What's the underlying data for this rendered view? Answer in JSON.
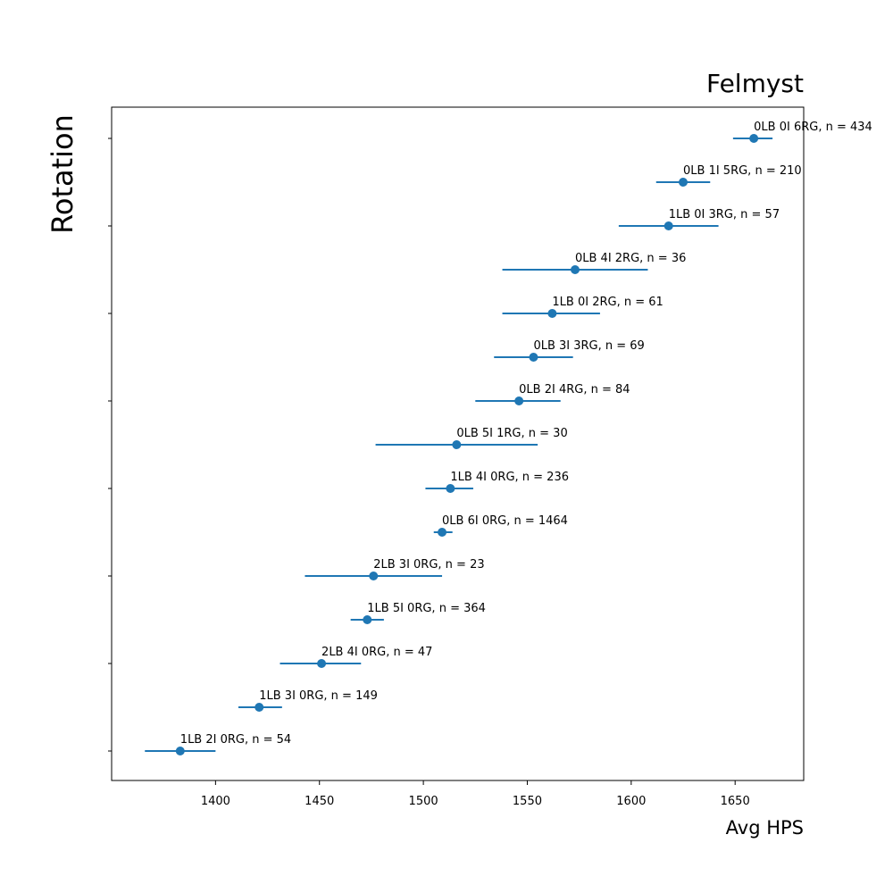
{
  "chart_data": {
    "type": "scatter",
    "title": "Felmyst",
    "xlabel": "Avg HPS",
    "ylabel": "Rotation",
    "xlim": [
      1350,
      1683
    ],
    "x_ticks": [
      1400,
      1450,
      1500,
      1550,
      1600,
      1650
    ],
    "x_tick_labels": [
      "1400",
      "1450",
      "1500",
      "1550",
      "1600",
      "1650"
    ],
    "y_tick_labels_shown": false,
    "grid": false,
    "legend": "none",
    "color": "#1f77b4",
    "series": [
      {
        "points": [
          {
            "label": "1LB 2I 0RG, n = 54",
            "x": 1383,
            "xerr_low": 1366,
            "xerr_high": 1400
          },
          {
            "label": "1LB 3I 0RG, n = 149",
            "x": 1421,
            "xerr_low": 1411,
            "xerr_high": 1432
          },
          {
            "label": "2LB 4I 0RG, n = 47",
            "x": 1451,
            "xerr_low": 1431,
            "xerr_high": 1470
          },
          {
            "label": "1LB 5I 0RG, n = 364",
            "x": 1473,
            "xerr_low": 1465,
            "xerr_high": 1481
          },
          {
            "label": "2LB 3I 0RG, n = 23",
            "x": 1476,
            "xerr_low": 1443,
            "xerr_high": 1509
          },
          {
            "label": "0LB 6I 0RG, n = 1464",
            "x": 1509,
            "xerr_low": 1505,
            "xerr_high": 1514
          },
          {
            "label": "1LB 4I 0RG, n = 236",
            "x": 1513,
            "xerr_low": 1501,
            "xerr_high": 1524
          },
          {
            "label": "0LB 5I 1RG, n = 30",
            "x": 1516,
            "xerr_low": 1477,
            "xerr_high": 1555
          },
          {
            "label": "0LB 2I 4RG, n = 84",
            "x": 1546,
            "xerr_low": 1525,
            "xerr_high": 1566
          },
          {
            "label": "0LB 3I 3RG, n = 69",
            "x": 1553,
            "xerr_low": 1534,
            "xerr_high": 1572
          },
          {
            "label": "1LB 0I 2RG, n = 61",
            "x": 1562,
            "xerr_low": 1538,
            "xerr_high": 1585
          },
          {
            "label": "0LB 4I 2RG, n = 36",
            "x": 1573,
            "xerr_low": 1538,
            "xerr_high": 1608
          },
          {
            "label": "1LB 0I 3RG, n = 57",
            "x": 1618,
            "xerr_low": 1594,
            "xerr_high": 1642
          },
          {
            "label": "0LB 1I 5RG, n = 210",
            "x": 1625,
            "xerr_low": 1612,
            "xerr_high": 1638
          },
          {
            "label": "0LB 0I 6RG, n = 434",
            "x": 1659,
            "xerr_low": 1649,
            "xerr_high": 1668
          }
        ]
      }
    ]
  }
}
